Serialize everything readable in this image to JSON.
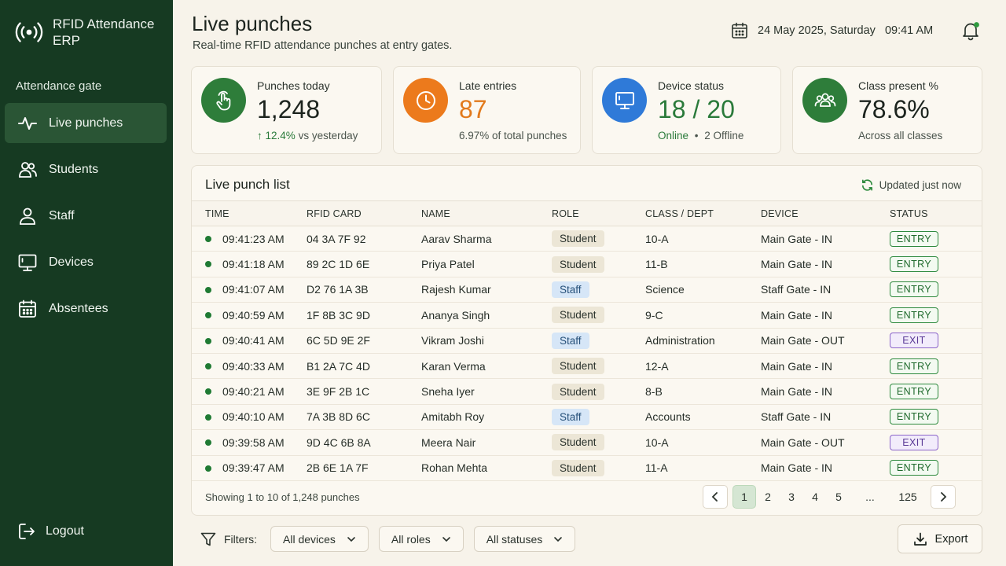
{
  "brand": {
    "title_line1": "RFID Attendance",
    "title_line2": "ERP",
    "icon": "rfid-signal-icon"
  },
  "sidebar": {
    "section_label": "Attendance gate",
    "items": [
      {
        "label": "Live punches",
        "icon": "activity-pulse-icon",
        "active": true
      },
      {
        "label": "Students",
        "icon": "users-icon",
        "active": false
      },
      {
        "label": "Staff",
        "icon": "user-icon",
        "active": false
      },
      {
        "label": "Devices",
        "icon": "monitor-icon",
        "active": false
      },
      {
        "label": "Absentees",
        "icon": "calendar-icon",
        "active": false
      }
    ],
    "logout_label": "Logout"
  },
  "header": {
    "title": "Live punches",
    "subtitle": "Real-time RFID attendance punches at entry gates.",
    "date": "24 May 2025, Saturday",
    "time": "09:41 AM"
  },
  "cards": {
    "punches": {
      "label": "Punches today",
      "value": "1,248",
      "trend": "12.4%",
      "trend_suffix": "vs yesterday"
    },
    "late": {
      "label": "Late entries",
      "value": "87",
      "foot": "6.97% of total punches"
    },
    "device": {
      "label": "Device status",
      "value": "18 / 20",
      "online": "Online",
      "offline": "2 Offline"
    },
    "class": {
      "label": "Class present %",
      "value": "78.6%",
      "foot": "Across all classes"
    }
  },
  "colors": {
    "sidebar": "#163a22",
    "accent_green": "#2e7d3a",
    "late_orange": "#ec7a1c",
    "device_blue": "#2f7ad8"
  },
  "list": {
    "title": "Live punch list",
    "updated": "Updated just now",
    "columns": {
      "time": "TIME",
      "card": "RFID CARD",
      "name": "NAME",
      "role": "ROLE",
      "class": "CLASS / DEPT",
      "device": "DEVICE",
      "status": "STATUS"
    },
    "rows": [
      {
        "time": "09:41:23 AM",
        "card": "04 3A 7F 92",
        "name": "Aarav Sharma",
        "role": "Student",
        "class": "10-A",
        "device": "Main Gate - IN",
        "status": "ENTRY"
      },
      {
        "time": "09:41:18 AM",
        "card": "89 2C 1D 6E",
        "name": "Priya Patel",
        "role": "Student",
        "class": "11-B",
        "device": "Main Gate - IN",
        "status": "ENTRY"
      },
      {
        "time": "09:41:07 AM",
        "card": "D2 76 1A 3B",
        "name": "Rajesh Kumar",
        "role": "Staff",
        "class": "Science",
        "device": "Staff Gate - IN",
        "status": "ENTRY"
      },
      {
        "time": "09:40:59 AM",
        "card": "1F 8B 3C 9D",
        "name": "Ananya Singh",
        "role": "Student",
        "class": "9-C",
        "device": "Main Gate - IN",
        "status": "ENTRY"
      },
      {
        "time": "09:40:41 AM",
        "card": "6C 5D 9E 2F",
        "name": "Vikram Joshi",
        "role": "Staff",
        "class": "Administration",
        "device": "Main Gate - OUT",
        "status": "EXIT"
      },
      {
        "time": "09:40:33 AM",
        "card": "B1 2A 7C 4D",
        "name": "Karan Verma",
        "role": "Student",
        "class": "12-A",
        "device": "Main Gate - IN",
        "status": "ENTRY"
      },
      {
        "time": "09:40:21 AM",
        "card": "3E 9F 2B 1C",
        "name": "Sneha Iyer",
        "role": "Student",
        "class": "8-B",
        "device": "Main Gate - IN",
        "status": "ENTRY"
      },
      {
        "time": "09:40:10 AM",
        "card": "7A 3B 8D 6C",
        "name": "Amitabh Roy",
        "role": "Staff",
        "class": "Accounts",
        "device": "Staff Gate - IN",
        "status": "ENTRY"
      },
      {
        "time": "09:39:58 AM",
        "card": "9D 4C 6B 8A",
        "name": "Meera Nair",
        "role": "Student",
        "class": "10-A",
        "device": "Main Gate - OUT",
        "status": "EXIT"
      },
      {
        "time": "09:39:47 AM",
        "card": "2B 6E 1A 7F",
        "name": "Rohan Mehta",
        "role": "Student",
        "class": "11-A",
        "device": "Main Gate - IN",
        "status": "ENTRY"
      }
    ],
    "showing": "Showing 1 to 10 of 1,248 punches",
    "pages": [
      "1",
      "2",
      "3",
      "4",
      "5",
      "...",
      "125"
    ],
    "current_page": "1"
  },
  "filters": {
    "label": "Filters:",
    "device": "All devices",
    "role": "All roles",
    "status": "All statuses",
    "export_label": "Export"
  }
}
